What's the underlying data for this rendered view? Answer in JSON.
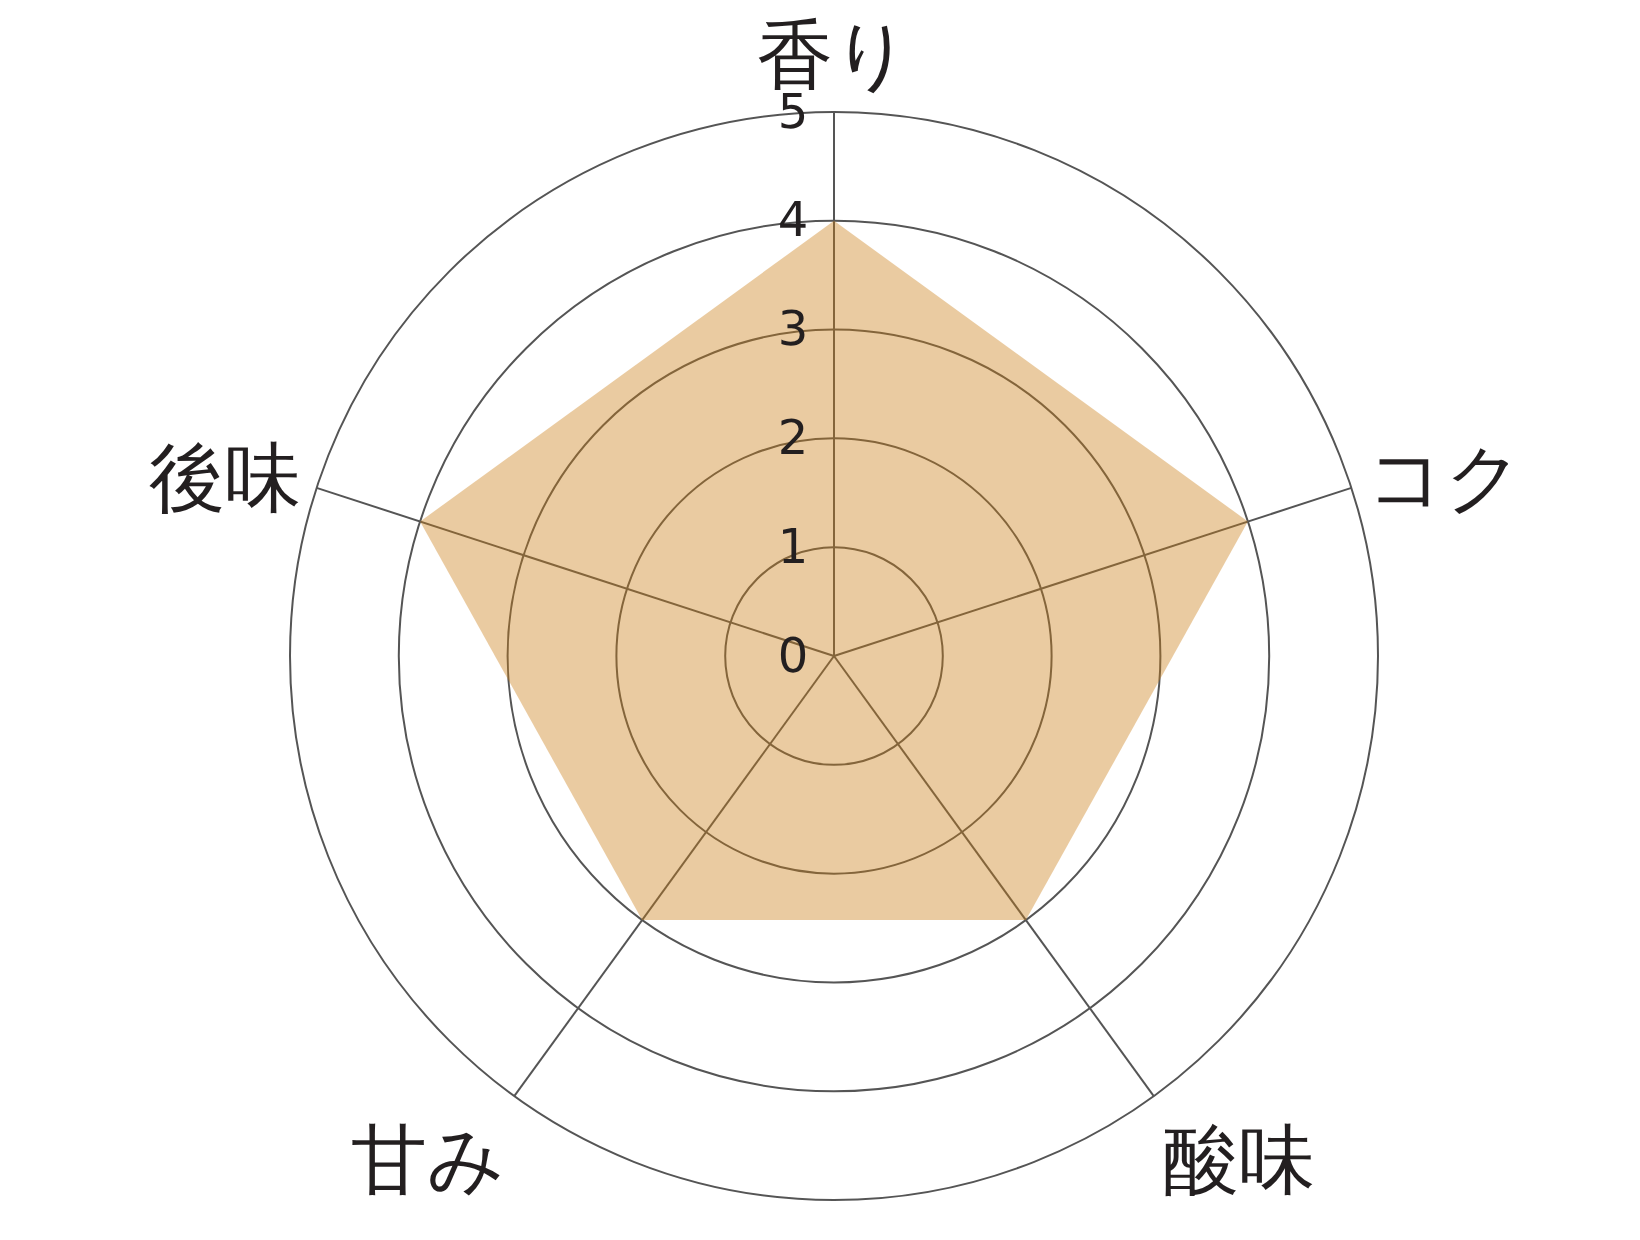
{
  "chart_data": {
    "type": "radar",
    "categories": [
      "香り",
      "コク",
      "酸味",
      "甘み",
      "後味"
    ],
    "series": [
      {
        "color": "#eacba1",
        "values": [
          4,
          4,
          3,
          3,
          4
        ]
      }
    ],
    "ylim": [
      0,
      5
    ],
    "yticks": [
      0,
      1,
      2,
      3,
      4,
      5
    ],
    "grid": true
  }
}
